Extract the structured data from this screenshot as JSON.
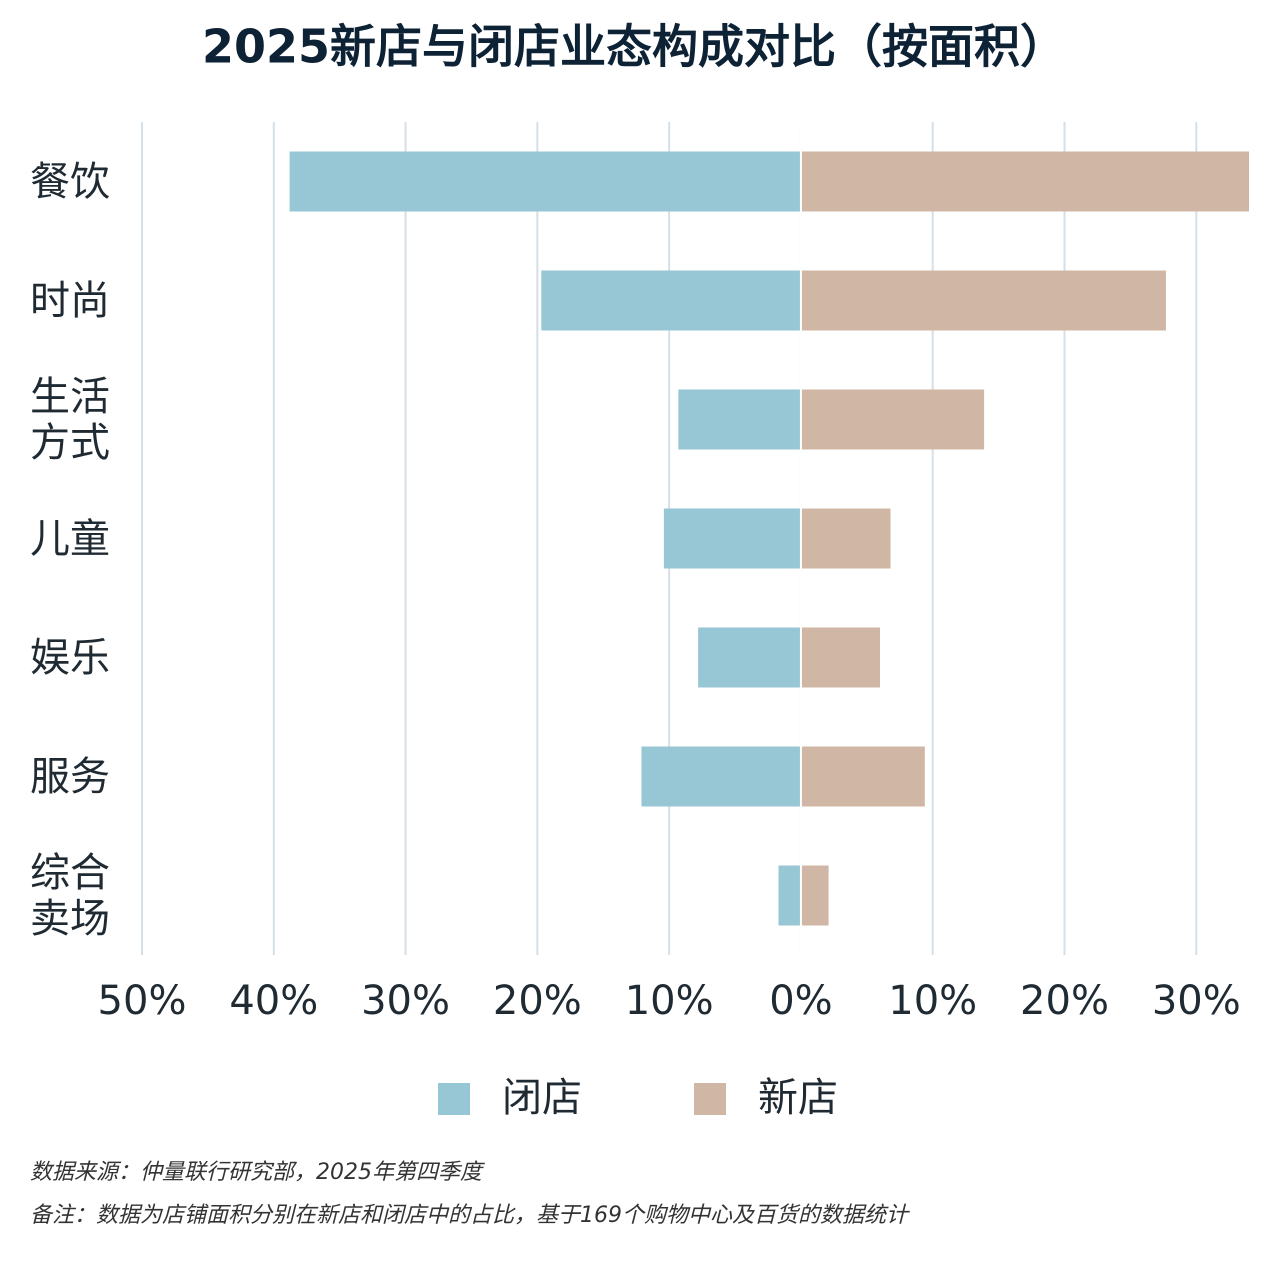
{
  "chart_data": {
    "type": "diverging_bar",
    "title": "2025新店与闭店业态构成对比（按面积）",
    "categories": [
      "餐饮",
      "时尚",
      "生活方式",
      "儿童",
      "娱乐",
      "服务",
      "综合卖场"
    ],
    "series": [
      {
        "name": "闭店",
        "color": "#97c6d4",
        "values": [
          -38.8,
          -19.7,
          -9.3,
          -10.4,
          -7.8,
          -12.1,
          -1.7
        ]
      },
      {
        "name": "新店",
        "color": "#d0b7a5",
        "values": [
          34.0,
          27.7,
          13.9,
          6.8,
          6.0,
          9.4,
          2.1
        ]
      }
    ],
    "xlim": [
      -50,
      34
    ],
    "xticks": [
      {
        "value": -50,
        "label": "50%"
      },
      {
        "value": -40,
        "label": "40%"
      },
      {
        "value": -30,
        "label": "30%"
      },
      {
        "value": -20,
        "label": "20%"
      },
      {
        "value": -10,
        "label": "10%"
      },
      {
        "value": 0,
        "label": "0%"
      },
      {
        "value": 10,
        "label": "10%"
      },
      {
        "value": 20,
        "label": "20%"
      },
      {
        "value": 30,
        "label": "30%"
      }
    ],
    "grid": true,
    "legend": "bottom",
    "source": "数据来源：仲量联行研究部，2025年第四季度",
    "note": "备注：数据为店铺面积分别在新店和闭店中的占比，基于169个购物中心及百货的数据统计"
  }
}
